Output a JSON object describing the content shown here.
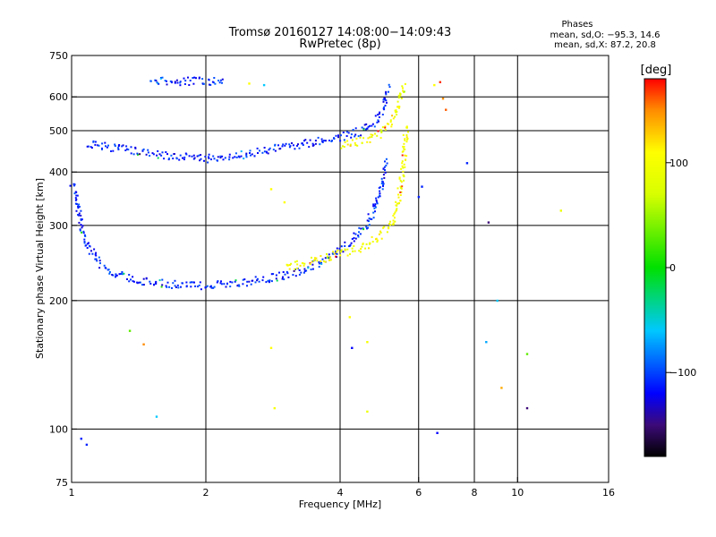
{
  "header": {
    "title": "Tromsø 20160127 14:08:00−14:09:43",
    "subtitle": "RwPretec (8p)",
    "stats_title": "Phases",
    "stats_line1": "mean, sd,O: −95.3, 14.6",
    "stats_line2": "mean, sd,X:  87.2, 20.8"
  },
  "colorbar": {
    "unit": "[deg]",
    "range": [
      -180,
      180
    ],
    "ticks": [
      {
        "value": 100,
        "label": "100"
      },
      {
        "value": 0,
        "label": "0"
      },
      {
        "value": -100,
        "label": "−100"
      }
    ],
    "gradient": [
      {
        "v": -180,
        "c": "#000000"
      },
      {
        "v": -150,
        "c": "#3c0a78"
      },
      {
        "v": -120,
        "c": "#0000ff"
      },
      {
        "v": -60,
        "c": "#00c8ff"
      },
      {
        "v": 0,
        "c": "#00e000"
      },
      {
        "v": 70,
        "c": "#d8ff00"
      },
      {
        "v": 110,
        "c": "#ffff00"
      },
      {
        "v": 150,
        "c": "#ff8c00"
      },
      {
        "v": 180,
        "c": "#ff0000"
      }
    ]
  },
  "chart_data": {
    "type": "scatter",
    "title": "Tromsø 20160127 14:08:00−14:09:43",
    "subtitle": "RwPretec (8p)",
    "xlabel": "Frequency [MHz]",
    "ylabel": "Stationary phase Virtual Height [km]",
    "x_scale": "log",
    "y_scale": "log",
    "xlim": [
      1,
      16
    ],
    "ylim": [
      75,
      750
    ],
    "x_ticks": [
      {
        "value": 1,
        "label": "1"
      },
      {
        "value": 2,
        "label": "2"
      },
      {
        "value": 4,
        "label": "4"
      },
      {
        "value": 6,
        "label": "6"
      },
      {
        "value": 8,
        "label": "8"
      },
      {
        "value": 10,
        "label": "10"
      },
      {
        "value": 16,
        "label": "16"
      }
    ],
    "y_ticks": [
      {
        "value": 75,
        "label": "75"
      },
      {
        "value": 100,
        "label": "100"
      },
      {
        "value": 200,
        "label": "200"
      },
      {
        "value": 300,
        "label": "300"
      },
      {
        "value": 400,
        "label": "400"
      },
      {
        "value": 500,
        "label": "500"
      },
      {
        "value": 600,
        "label": "600"
      },
      {
        "value": 750,
        "label": "750"
      }
    ],
    "x_gridlines": [
      2,
      4,
      6,
      8,
      10
    ],
    "y_gridlines": [
      100,
      200,
      300,
      400,
      500,
      600
    ],
    "color_meaning": "Phase [deg]",
    "traces": [
      {
        "x": [
          1.0,
          1.04,
          1.08,
          1.15,
          1.25,
          1.4,
          1.6,
          1.8,
          2.0,
          2.3,
          2.6,
          3.0,
          3.4,
          3.8,
          4.2,
          4.6,
          4.9,
          5.05
        ],
        "y": [
          380,
          310,
          270,
          245,
          232,
          224,
          220,
          218,
          218,
          220,
          224,
          230,
          240,
          255,
          275,
          305,
          360,
          430
        ],
        "phase": -110
      },
      {
        "x": [
          3.0,
          3.4,
          3.8,
          4.2,
          4.6,
          4.9,
          5.2,
          5.35,
          5.45,
          5.55,
          5.6
        ],
        "y": [
          240,
          247,
          255,
          262,
          272,
          285,
          305,
          335,
          380,
          440,
          520
        ],
        "phase": 100
      },
      {
        "x": [
          1.08,
          1.2,
          1.4,
          1.6,
          1.8,
          2.0,
          2.2,
          2.5,
          2.8,
          3.2,
          3.6,
          4.0,
          4.4,
          4.8,
          5.0,
          5.1
        ],
        "y": [
          470,
          460,
          450,
          440,
          435,
          432,
          435,
          445,
          455,
          465,
          475,
          485,
          500,
          530,
          570,
          640
        ],
        "phase": -110
      },
      {
        "x": [
          4.0,
          4.3,
          4.6,
          4.9,
          5.1,
          5.3,
          5.45,
          5.55
        ],
        "y": [
          462,
          470,
          480,
          495,
          515,
          550,
          600,
          650
        ],
        "phase": 100
      },
      {
        "x": [
          1.5,
          1.6,
          1.7,
          1.8,
          1.9,
          2.0,
          2.1,
          2.2
        ],
        "y": [
          660,
          658,
          656,
          655,
          655,
          655,
          654,
          652
        ],
        "phase": -110
      }
    ],
    "scatter_points": [
      {
        "x": 6.7,
        "y": 650,
        "phase": 170
      },
      {
        "x": 6.8,
        "y": 595,
        "phase": 150
      },
      {
        "x": 6.9,
        "y": 560,
        "phase": 160
      },
      {
        "x": 7.7,
        "y": 420,
        "phase": -110
      },
      {
        "x": 8.6,
        "y": 305,
        "phase": -150
      },
      {
        "x": 9.0,
        "y": 200,
        "phase": -60
      },
      {
        "x": 12.5,
        "y": 325,
        "phase": 90
      },
      {
        "x": 8.5,
        "y": 160,
        "phase": -70
      },
      {
        "x": 9.2,
        "y": 125,
        "phase": 140
      },
      {
        "x": 10.5,
        "y": 150,
        "phase": 30
      },
      {
        "x": 10.5,
        "y": 112,
        "phase": -150
      },
      {
        "x": 6.6,
        "y": 98,
        "phase": -120
      },
      {
        "x": 1.08,
        "y": 92,
        "phase": -110
      },
      {
        "x": 1.05,
        "y": 95,
        "phase": -110
      },
      {
        "x": 1.45,
        "y": 158,
        "phase": 150
      },
      {
        "x": 1.55,
        "y": 107,
        "phase": -60
      },
      {
        "x": 1.35,
        "y": 170,
        "phase": 30
      },
      {
        "x": 2.8,
        "y": 155,
        "phase": 110
      },
      {
        "x": 2.85,
        "y": 112,
        "phase": 100
      },
      {
        "x": 4.2,
        "y": 183,
        "phase": 110
      },
      {
        "x": 4.25,
        "y": 155,
        "phase": -120
      },
      {
        "x": 4.6,
        "y": 160,
        "phase": 100
      },
      {
        "x": 4.6,
        "y": 110,
        "phase": 90
      },
      {
        "x": 2.8,
        "y": 365,
        "phase": 110
      },
      {
        "x": 3.0,
        "y": 340,
        "phase": 110
      },
      {
        "x": 6.1,
        "y": 370,
        "phase": -110
      },
      {
        "x": 6.0,
        "y": 350,
        "phase": -110
      },
      {
        "x": 2.5,
        "y": 645,
        "phase": 110
      },
      {
        "x": 2.7,
        "y": 640,
        "phase": -60
      },
      {
        "x": 6.5,
        "y": 640,
        "phase": 110
      }
    ]
  }
}
